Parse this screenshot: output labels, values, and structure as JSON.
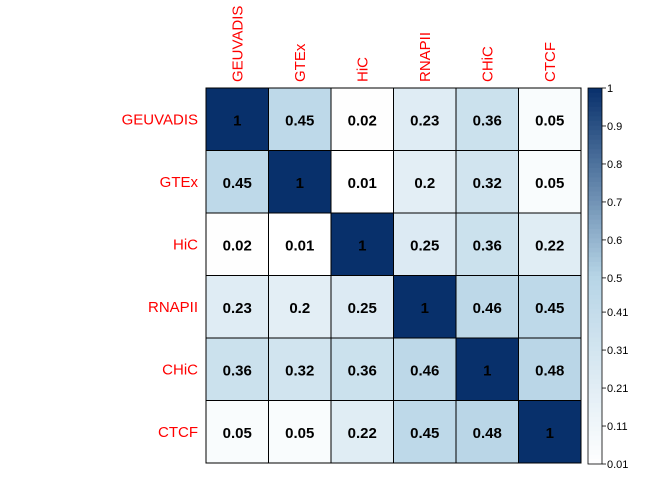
{
  "chart_data": {
    "type": "heatmap",
    "title": "",
    "rows": [
      "GEUVADIS",
      "GTEx",
      "HiC",
      "RNAPII",
      "CHiC",
      "CTCF"
    ],
    "columns": [
      "GEUVADIS",
      "GTEx",
      "HiC",
      "RNAPII",
      "CHiC",
      "CTCF"
    ],
    "values": [
      [
        1,
        0.45,
        0.02,
        0.23,
        0.36,
        0.05
      ],
      [
        0.45,
        1,
        0.01,
        0.2,
        0.32,
        0.05
      ],
      [
        0.02,
        0.01,
        1,
        0.25,
        0.36,
        0.22
      ],
      [
        0.23,
        0.2,
        0.25,
        1,
        0.46,
        0.45
      ],
      [
        0.36,
        0.32,
        0.36,
        0.46,
        1,
        0.48
      ],
      [
        0.05,
        0.05,
        0.22,
        0.45,
        0.48,
        1
      ]
    ],
    "labels": [
      [
        "1",
        "0.45",
        "0.02",
        "0.23",
        "0.36",
        "0.05"
      ],
      [
        "0.45",
        "1",
        "0.01",
        "0.2",
        "0.32",
        "0.05"
      ],
      [
        "0.02",
        "0.01",
        "1",
        "0.25",
        "0.36",
        "0.22"
      ],
      [
        "0.23",
        "0.2",
        "0.25",
        "1",
        "0.46",
        "0.45"
      ],
      [
        "0.36",
        "0.32",
        "0.36",
        "0.46",
        "1",
        "0.48"
      ],
      [
        "0.05",
        "0.05",
        "0.22",
        "0.45",
        "0.48",
        "1"
      ]
    ],
    "colorbar": {
      "range": [
        0.01,
        1
      ],
      "ticks": [
        "1",
        "0.9",
        "0.8",
        "0.7",
        "0.6",
        "0.5",
        "0.41",
        "0.31",
        "0.21",
        "0.11",
        "0.01"
      ],
      "position": "right"
    },
    "colors": {
      "low": "#ffffff",
      "mid": "#b6d4e6",
      "high": "#08306b",
      "label_text": "#ff0000",
      "value_text": "#000000"
    }
  }
}
